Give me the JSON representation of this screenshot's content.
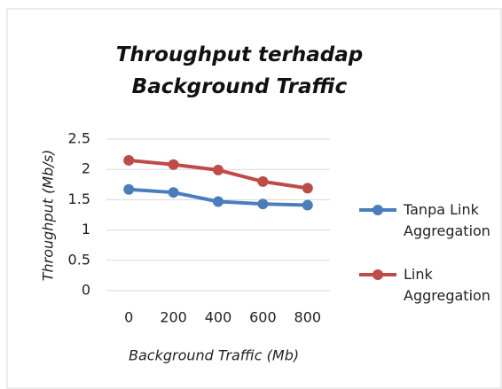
{
  "chart_data": {
    "type": "line",
    "title": "Throughput terhadap Background Traffic",
    "xlabel": "Background Traffic (Mb)",
    "ylabel": "Throughput (Mb/s)",
    "x": [
      0,
      200,
      400,
      600,
      800
    ],
    "xlim": [
      -100,
      900
    ],
    "xticks": [
      0,
      200,
      400,
      600,
      800
    ],
    "ylim": [
      0,
      2.5
    ],
    "yticks": [
      0,
      0.5,
      1,
      1.5,
      2,
      2.5
    ],
    "grid": true,
    "legend": "right",
    "series": [
      {
        "name": "Tanpa Link Aggregation",
        "color": "#4a7ebb",
        "values": [
          1.67,
          1.62,
          1.47,
          1.43,
          1.41
        ]
      },
      {
        "name": "Link Aggregation",
        "color": "#be4b48",
        "values": [
          2.15,
          2.08,
          1.99,
          1.8,
          1.69
        ]
      }
    ]
  }
}
